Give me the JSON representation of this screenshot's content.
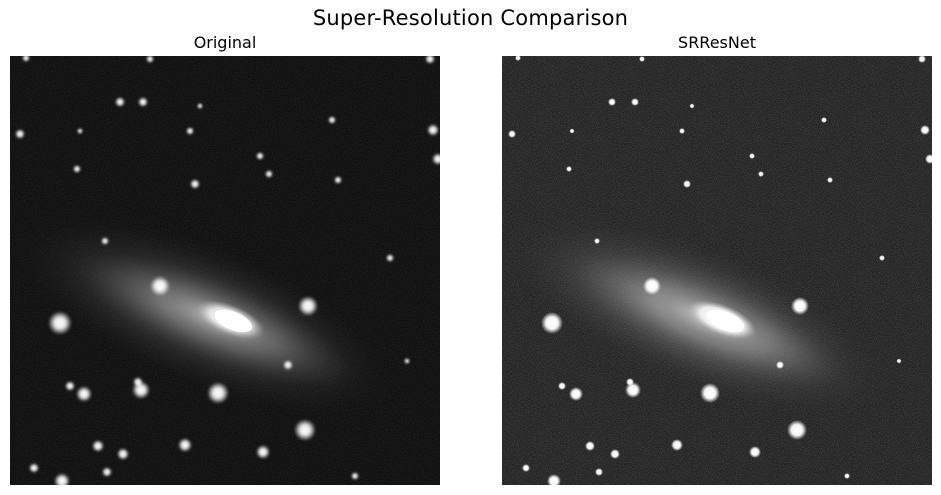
{
  "figure": {
    "title": "Super-Resolution Comparison"
  },
  "panels": [
    {
      "title": "Original",
      "style": "smooth"
    },
    {
      "title": "SRResNet",
      "style": "sharp-noisy"
    }
  ],
  "colors": {
    "background": "#ffffff",
    "image_black": "#050505",
    "galaxy_glow": "#cfcfcf",
    "star": "#ffffff"
  }
}
